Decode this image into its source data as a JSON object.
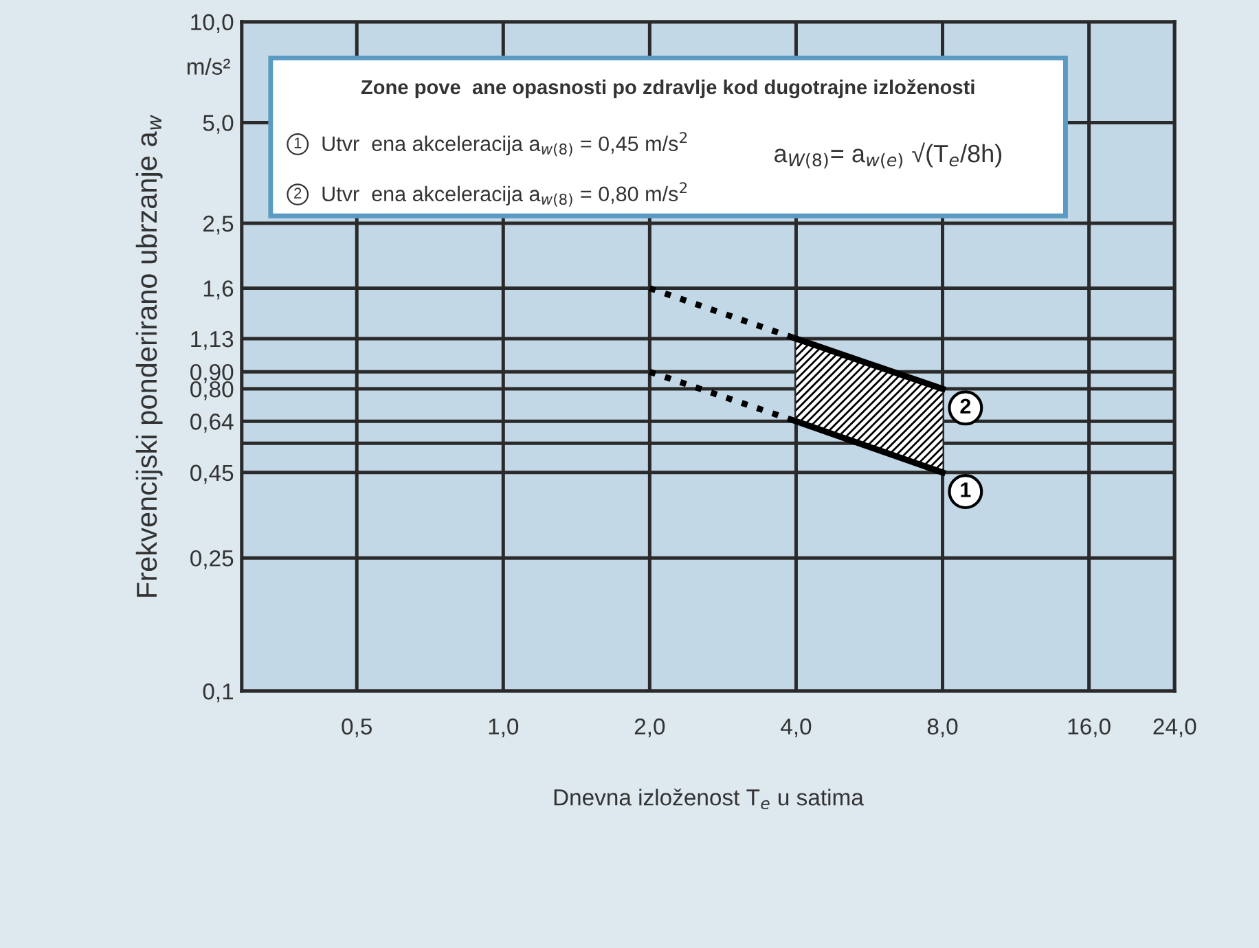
{
  "chart_data": {
    "type": "line",
    "xlabel": "Dnevna izloženost T$_{e}$ u satima",
    "ylabel": "Frekvencijski ponderirano ubrzanje a$_{w}$",
    "log": "xy",
    "xlim": [
      0.29,
      24
    ],
    "ylim": [
      0.1,
      10
    ],
    "xticks": [
      {
        "value": 0.5,
        "label": "0,5"
      },
      {
        "value": 1,
        "label": "1,0"
      },
      {
        "value": 2,
        "label": "2,0"
      },
      {
        "value": 4,
        "label": "4,0"
      },
      {
        "value": 8,
        "label": "8,0"
      },
      {
        "value": 16,
        "label": "16,0"
      },
      {
        "value": 24,
        "label": "24,0"
      }
    ],
    "yticks": [
      {
        "value": 0.1,
        "label": "0,1"
      },
      {
        "value": 0.25,
        "label": "0,25"
      },
      {
        "value": 0.45,
        "label": "0,45"
      },
      {
        "value": 0.55,
        "label": null
      },
      {
        "value": 0.64,
        "label": "0,64"
      },
      {
        "value": 0.8,
        "label": "0,80"
      },
      {
        "value": 0.9,
        "label": "0,90"
      },
      {
        "value": 1.13,
        "label": "1,13"
      },
      {
        "value": 1.6,
        "label": "1,6"
      },
      {
        "value": 2.5,
        "label": "2,5"
      },
      {
        "value": 5,
        "label": "5,0"
      },
      {
        "value": 10,
        "label": "10,0"
      }
    ],
    "grid": true,
    "series": [
      {
        "color": "#000000",
        "x": [
          2,
          4
        ],
        "values": [
          1.6,
          1.13
        ],
        "line_style": "dotted"
      },
      {
        "color": "#000000",
        "x": [
          2,
          4
        ],
        "values": [
          0.9,
          0.64
        ],
        "line_style": "dotted"
      },
      {
        "color": "#000000",
        "x": [
          4,
          8
        ],
        "values": [
          1.13,
          0.8
        ],
        "line_style": "solid"
      },
      {
        "color": "#000000",
        "x": [
          4,
          8
        ],
        "values": [
          0.64,
          0.45
        ],
        "line_style": "solid"
      }
    ],
    "annotations": [
      "m/s²",
      "Zone pove  ane opasnosti po zdravlje kod dugotrajne izloženosti",
      "1",
      "Utvr  ena akceleracija a$_{w(8)}$ = 0,45 m/s$^{2}$",
      "2",
      "Utvr  ena akceleracija a$_{w(8)}$ = 0,80 m/s$^{2}$",
      "a$_{W(8)}$= a$_{w(e)}$ √(T$_{e}$/8h)",
      {
        "text": "1",
        "x": 8,
        "y": 0.45
      },
      {
        "text": "2",
        "x": 8,
        "y": 0.8
      }
    ]
  }
}
